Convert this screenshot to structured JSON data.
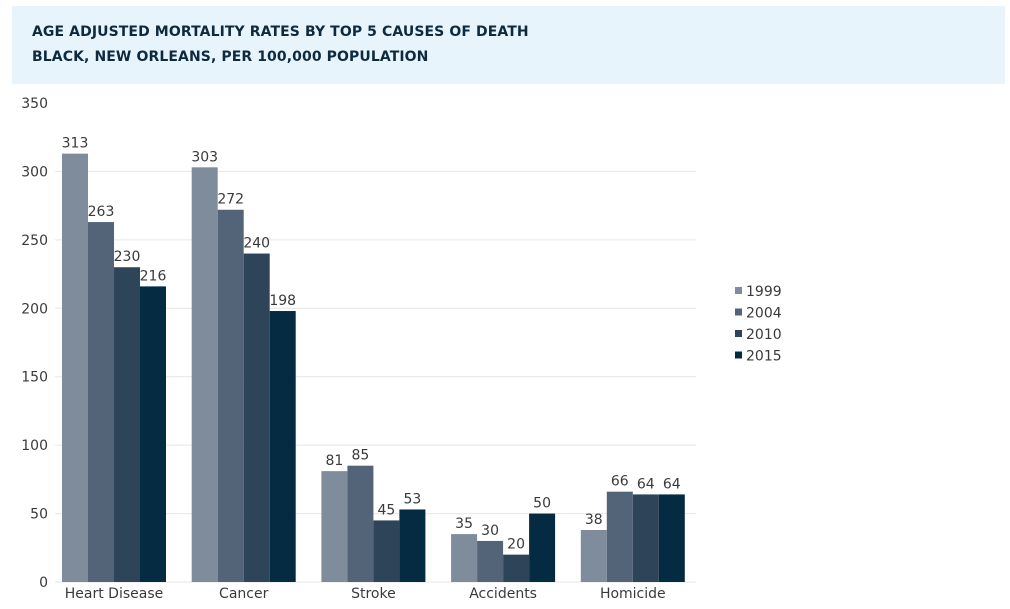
{
  "chart_data": {
    "type": "bar",
    "title": "AGE ADJUSTED MORTALITY RATES BY TOP 5 CAUSES OF DEATH",
    "subtitle": "BLACK, NEW ORLEANS, PER 100,000 POPULATION",
    "xlabel": "",
    "ylabel": "",
    "ylim": [
      0,
      350
    ],
    "yticks": [
      0,
      50,
      100,
      150,
      200,
      250,
      300,
      350
    ],
    "grid": true,
    "legend_position": "right",
    "categories": [
      "Heart Disease",
      "Cancer",
      "Stroke",
      "Accidents",
      "Homicide"
    ],
    "series": [
      {
        "name": "1999",
        "color": "#7f8c9b",
        "values": [
          313,
          303,
          81,
          35,
          38
        ]
      },
      {
        "name": "2004",
        "color": "#536478",
        "values": [
          263,
          272,
          85,
          30,
          66
        ]
      },
      {
        "name": "2010",
        "color": "#2e4559",
        "values": [
          230,
          240,
          45,
          20,
          64
        ]
      },
      {
        "name": "2015",
        "color": "#052b42",
        "values": [
          216,
          198,
          53,
          50,
          64
        ]
      }
    ]
  }
}
